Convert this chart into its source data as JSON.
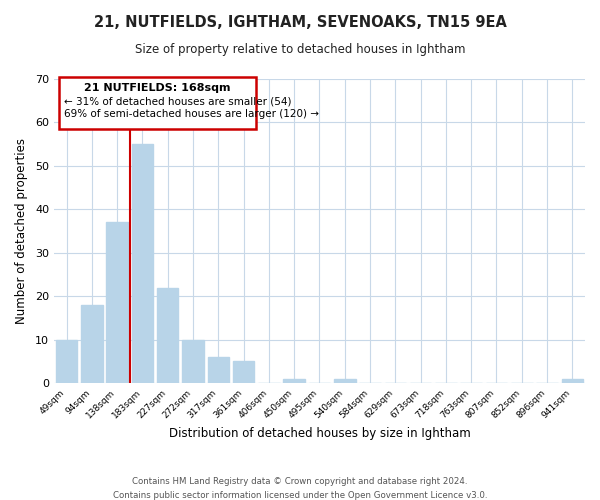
{
  "title": "21, NUTFIELDS, IGHTHAM, SEVENOAKS, TN15 9EA",
  "subtitle": "Size of property relative to detached houses in Ightham",
  "xlabel": "Distribution of detached houses by size in Ightham",
  "ylabel": "Number of detached properties",
  "bar_labels": [
    "49sqm",
    "94sqm",
    "138sqm",
    "183sqm",
    "227sqm",
    "272sqm",
    "317sqm",
    "361sqm",
    "406sqm",
    "450sqm",
    "495sqm",
    "540sqm",
    "584sqm",
    "629sqm",
    "673sqm",
    "718sqm",
    "763sqm",
    "807sqm",
    "852sqm",
    "896sqm",
    "941sqm"
  ],
  "bar_values": [
    10,
    18,
    37,
    55,
    22,
    10,
    6,
    5,
    0,
    1,
    0,
    1,
    0,
    0,
    0,
    0,
    0,
    0,
    0,
    0,
    1
  ],
  "bar_color": "#b8d4e8",
  "marker_bar_index": 3,
  "marker_line_color": "#cc0000",
  "ylim": [
    0,
    70
  ],
  "yticks": [
    0,
    10,
    20,
    30,
    40,
    50,
    60,
    70
  ],
  "annotation_title": "21 NUTFIELDS: 168sqm",
  "annotation_line1": "← 31% of detached houses are smaller (54)",
  "annotation_line2": "69% of semi-detached houses are larger (120) →",
  "annotation_box_color": "#ffffff",
  "annotation_box_edge": "#cc0000",
  "footer1": "Contains HM Land Registry data © Crown copyright and database right 2024.",
  "footer2": "Contains public sector information licensed under the Open Government Licence v3.0.",
  "background_color": "#ffffff",
  "grid_color": "#c8d8e8",
  "fig_width": 6.0,
  "fig_height": 5.0
}
